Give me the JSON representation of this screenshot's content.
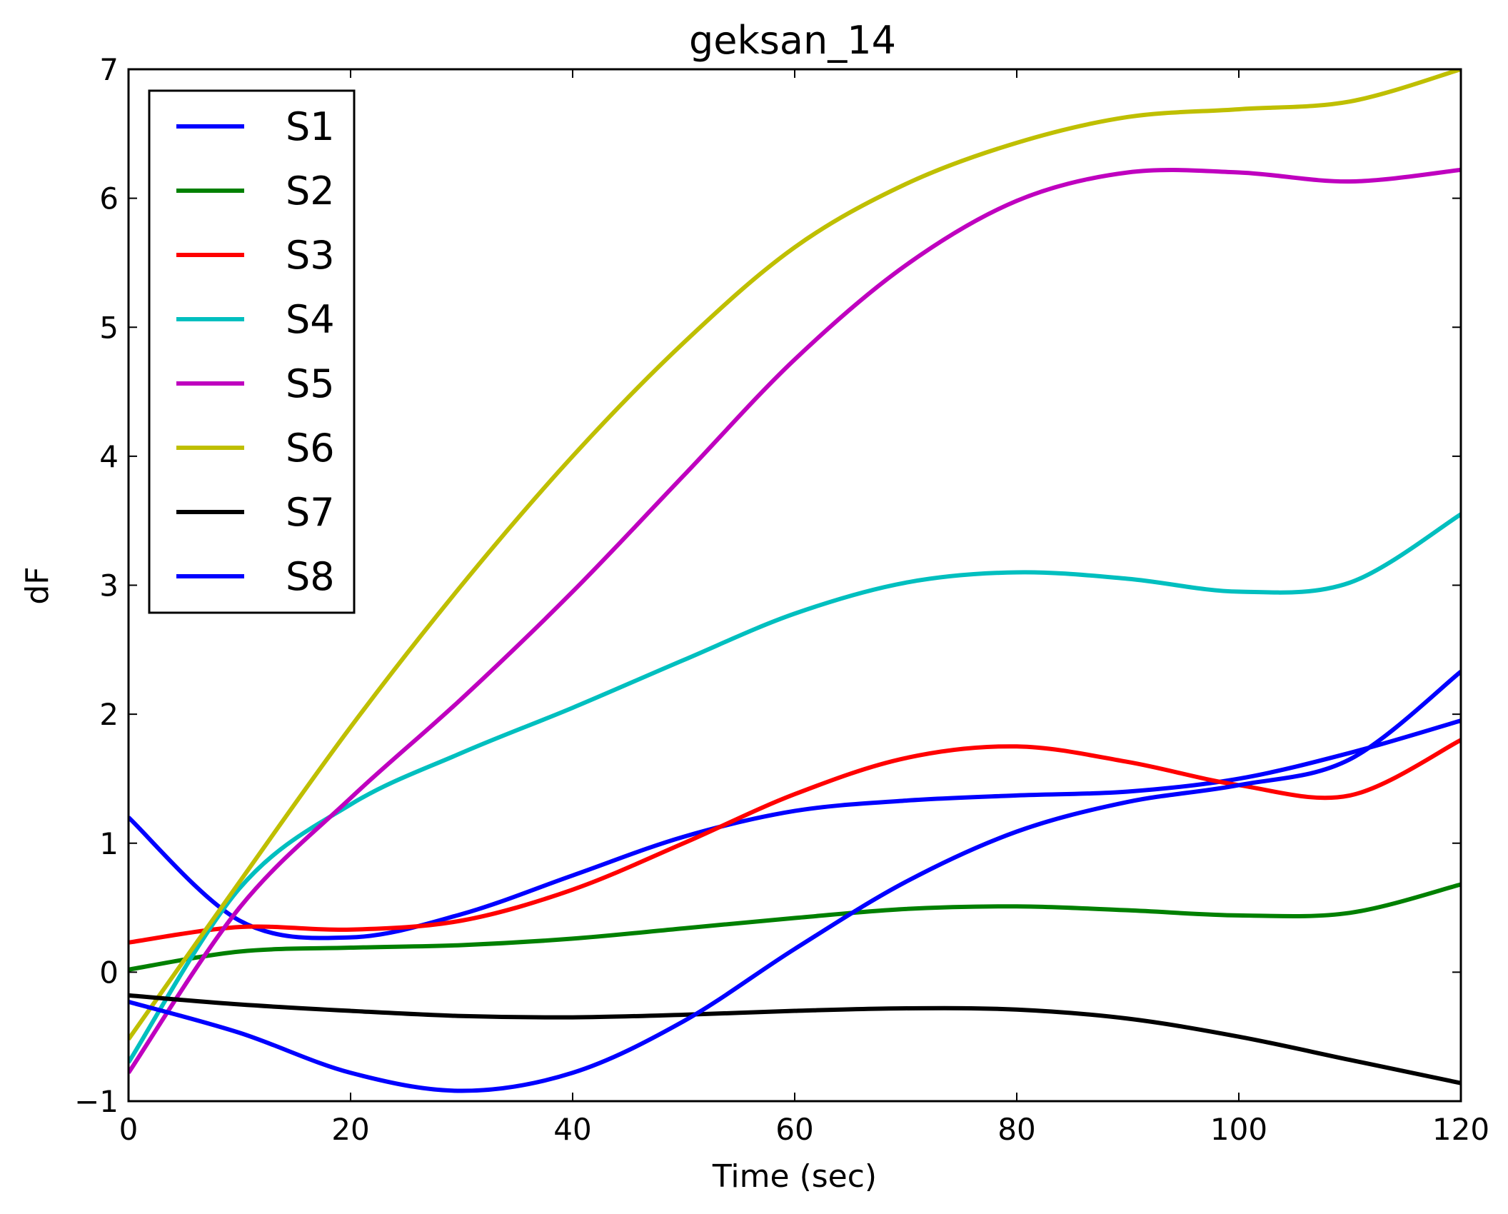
{
  "chart_data": {
    "type": "line",
    "title": "geksan_14",
    "xlabel": "Time (sec)",
    "ylabel": "dF",
    "xlim": [
      0,
      120
    ],
    "ylim": [
      -1,
      7
    ],
    "xticks": [
      0,
      20,
      40,
      60,
      80,
      100,
      120
    ],
    "yticks": [
      -1,
      0,
      1,
      2,
      3,
      4,
      5,
      6,
      7
    ],
    "ytick_labels": [
      "−1",
      "0",
      "1",
      "2",
      "3",
      "4",
      "5",
      "6",
      "7"
    ],
    "xtick_labels": [
      "0",
      "20",
      "40",
      "60",
      "80",
      "100",
      "120"
    ],
    "grid": false,
    "legend_position": "top-left",
    "x": [
      0,
      10,
      20,
      30,
      40,
      50,
      60,
      70,
      80,
      90,
      100,
      110,
      120
    ],
    "series": [
      {
        "name": "S1",
        "color": "#0000ff",
        "values": [
          1.2,
          0.4,
          0.27,
          0.45,
          0.75,
          1.05,
          1.25,
          1.33,
          1.37,
          1.4,
          1.5,
          1.7,
          1.95
        ]
      },
      {
        "name": "S2",
        "color": "#008000",
        "values": [
          0.02,
          0.16,
          0.19,
          0.21,
          0.26,
          0.34,
          0.42,
          0.49,
          0.51,
          0.48,
          0.44,
          0.46,
          0.68
        ]
      },
      {
        "name": "S3",
        "color": "#ff0000",
        "values": [
          0.23,
          0.35,
          0.33,
          0.4,
          0.64,
          1.0,
          1.38,
          1.66,
          1.75,
          1.63,
          1.45,
          1.37,
          1.8
        ]
      },
      {
        "name": "S4",
        "color": "#00bfbf",
        "values": [
          -0.7,
          0.65,
          1.3,
          1.7,
          2.05,
          2.42,
          2.78,
          3.02,
          3.1,
          3.05,
          2.95,
          3.02,
          3.55
        ]
      },
      {
        "name": "S5",
        "color": "#bf00bf",
        "values": [
          -0.78,
          0.5,
          1.35,
          2.12,
          2.95,
          3.85,
          4.75,
          5.48,
          5.98,
          6.2,
          6.2,
          6.13,
          6.22
        ]
      },
      {
        "name": "S6",
        "color": "#bfbf00",
        "values": [
          -0.52,
          0.7,
          1.9,
          3.0,
          4.0,
          4.88,
          5.62,
          6.11,
          6.43,
          6.63,
          6.69,
          6.75,
          7.0
        ]
      },
      {
        "name": "S7",
        "color": "#000000",
        "values": [
          -0.18,
          -0.25,
          -0.3,
          -0.34,
          -0.35,
          -0.33,
          -0.3,
          -0.28,
          -0.29,
          -0.36,
          -0.5,
          -0.68,
          -0.86
        ]
      },
      {
        "name": "S8",
        "color": "#0000ff",
        "values": [
          -0.23,
          -0.47,
          -0.78,
          -0.92,
          -0.78,
          -0.38,
          0.18,
          0.7,
          1.09,
          1.32,
          1.45,
          1.65,
          2.33
        ]
      }
    ]
  }
}
